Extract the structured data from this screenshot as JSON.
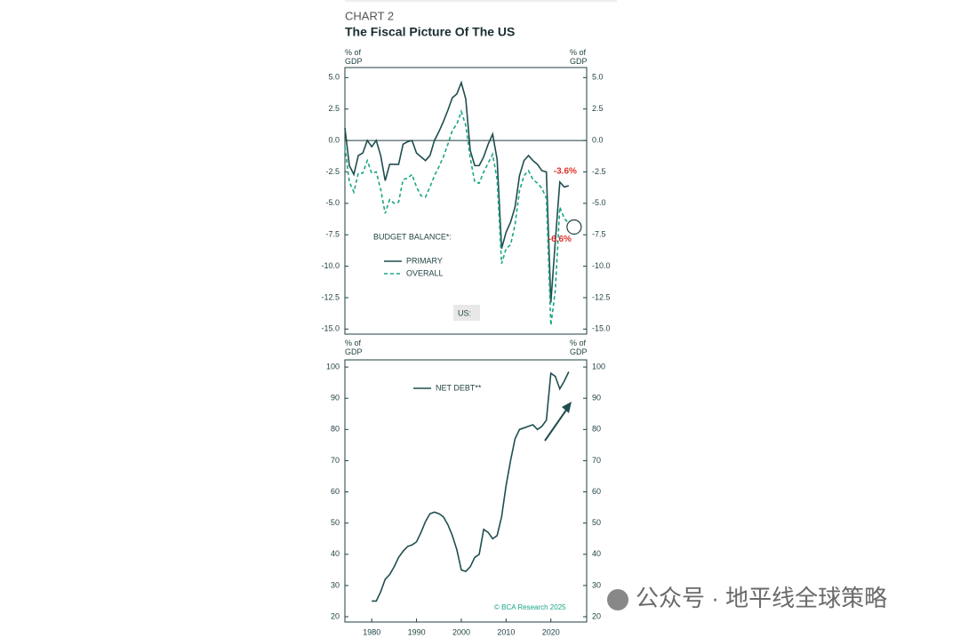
{
  "header": {
    "label": "CHART 2",
    "title": "The Fiscal Picture Of The US"
  },
  "chart_data": [
    {
      "type": "line",
      "y_label": "% of GDP",
      "y2_label": "% of GDP",
      "legend_title": "BUDGET BALANCE*:",
      "panel_label": "US:",
      "x": [
        1974,
        1975,
        1976,
        1977,
        1978,
        1979,
        1980,
        1981,
        1982,
        1983,
        1984,
        1985,
        1986,
        1987,
        1988,
        1989,
        1990,
        1991,
        1992,
        1993,
        1994,
        1995,
        1996,
        1997,
        1998,
        1999,
        2000,
        2001,
        2002,
        2003,
        2004,
        2005,
        2006,
        2007,
        2008,
        2009,
        2010,
        2011,
        2012,
        2013,
        2014,
        2015,
        2016,
        2017,
        2018,
        2019,
        2020,
        2021,
        2022,
        2023,
        2024
      ],
      "xlim": [
        1974,
        2028
      ],
      "ylim": [
        -15.4,
        5.8
      ],
      "yticks": [
        {
          "value": 5,
          "label": "5.0"
        },
        2.5,
        {
          "value": 0,
          "label": "0.0"
        },
        -2.5,
        {
          "value": -5,
          "label": "-5.0"
        },
        -7.5,
        {
          "value": -10,
          "label": "-10.0"
        },
        -12.5,
        {
          "value": -15,
          "label": "-15.0"
        }
      ],
      "y2lim": [
        -15.4,
        5.8
      ],
      "y2ticks": [
        {
          "value": 5,
          "label": "5.0"
        },
        2.5,
        {
          "value": 0,
          "label": "0.0"
        },
        -2.5,
        {
          "value": -5,
          "label": "-5.0"
        },
        -7.5,
        {
          "value": -10,
          "label": "-10.0"
        },
        -12.5,
        {
          "value": -15,
          "label": "-15.0"
        }
      ],
      "series": [
        {
          "name": "PRIMARY",
          "color": "#1f4e4f",
          "dashed": false,
          "values": [
            1.0,
            -2.0,
            -2.7,
            -1.2,
            -1.0,
            0,
            -0.5,
            0,
            -1.2,
            -3.2,
            -1.9,
            -1.9,
            -1.9,
            -0.3,
            -0.1,
            0,
            -1.0,
            -1.3,
            -1.6,
            -1.2,
            0,
            0.7,
            1.5,
            2.4,
            3.4,
            3.7,
            4.6,
            3.3,
            -0.8,
            -2.0,
            -2.0,
            -1.3,
            -0.3,
            0.5,
            -1.5,
            -8.6,
            -7.3,
            -6.5,
            -5.3,
            -2.8,
            -1.6,
            -1.2,
            -1.6,
            -1.9,
            -2.4,
            -2.5,
            -12.9,
            -8.0,
            -3.3,
            -3.7,
            -3.6
          ]
        },
        {
          "name": "OVERALL",
          "color": "#1aa585",
          "dashed": true,
          "values": [
            -0.5,
            -3.3,
            -4.1,
            -2.6,
            -2.6,
            -1.6,
            -2.6,
            -2.5,
            -3.9,
            -5.8,
            -4.7,
            -5.0,
            -4.9,
            -3.1,
            -3.0,
            -2.7,
            -3.7,
            -4.4,
            -4.5,
            -3.7,
            -2.8,
            -2.1,
            -1.3,
            -0.3,
            0.8,
            1.3,
            2.3,
            1.2,
            -1.4,
            -3.3,
            -3.4,
            -2.5,
            -1.8,
            -1.1,
            -3.1,
            -9.8,
            -8.6,
            -8.3,
            -6.7,
            -4.0,
            -2.8,
            -2.4,
            -3.1,
            -3.4,
            -3.8,
            -4.6,
            -14.7,
            -11.9,
            -5.3,
            -6.2,
            -6.6
          ]
        }
      ],
      "annotations": [
        {
          "text": "-3.6%",
          "color": "#d9322b"
        },
        {
          "text": "-6.6%",
          "color": "#d9322b"
        }
      ]
    },
    {
      "type": "line",
      "y_label": "% of GDP",
      "y2_label": "% of GDP",
      "credit": "© BCA Research 2025",
      "x": [
        1980,
        1981,
        1982,
        1983,
        1984,
        1985,
        1986,
        1987,
        1988,
        1989,
        1990,
        1991,
        1992,
        1993,
        1994,
        1995,
        1996,
        1997,
        1998,
        1999,
        2000,
        2001,
        2002,
        2003,
        2004,
        2005,
        2006,
        2007,
        2008,
        2009,
        2010,
        2011,
        2012,
        2013,
        2014,
        2015,
        2016,
        2017,
        2018,
        2019,
        2020,
        2021,
        2022,
        2023,
        2024
      ],
      "xlim": [
        1974,
        2028
      ],
      "xticks": [
        1980,
        1990,
        2000,
        2010,
        2020
      ],
      "ylim": [
        18.3,
        102.3
      ],
      "yticks": [
        100,
        90,
        80,
        70,
        60,
        50,
        40,
        30,
        20
      ],
      "y2lim": [
        18.3,
        102.3
      ],
      "y2ticks": [
        100,
        90,
        80,
        70,
        60,
        50,
        40,
        30,
        20
      ],
      "series": [
        {
          "name": "NET DEBT**",
          "color": "#1f4e4f",
          "dashed": false,
          "values": [
            25,
            25,
            28,
            32,
            33.5,
            36,
            39,
            41,
            42.5,
            43,
            44,
            47,
            50.5,
            53,
            53.5,
            53,
            52,
            49.5,
            46,
            41.5,
            35,
            34.5,
            36,
            39,
            40,
            48,
            47,
            45,
            46,
            52,
            62,
            70,
            77,
            80,
            80.5,
            81,
            81.5,
            80,
            81,
            83,
            98,
            97,
            93,
            95.5,
            98.5
          ]
        }
      ]
    }
  ],
  "watermark": "公众号 · 地平线全球策略"
}
